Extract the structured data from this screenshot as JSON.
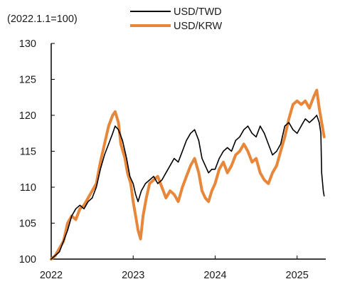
{
  "chart_data": {
    "type": "line",
    "unit_note": "(2022.1.1=100)",
    "xlabel": "",
    "ylabel": "",
    "x_ticks": [
      "2022",
      "2023",
      "2024",
      "2025"
    ],
    "y_ticks": [
      100,
      105,
      110,
      115,
      120,
      125,
      130
    ],
    "ylim": [
      100,
      130
    ],
    "xlim": [
      2022.0,
      2025.35
    ],
    "grid": false,
    "legend_position": "top-center",
    "series": [
      {
        "name": "USD/TWD",
        "color": "#000000",
        "points": [
          [
            2022.0,
            100.0
          ],
          [
            2022.05,
            100.5
          ],
          [
            2022.1,
            101.0
          ],
          [
            2022.15,
            102.5
          ],
          [
            2022.2,
            104.0
          ],
          [
            2022.25,
            106.0
          ],
          [
            2022.3,
            107.0
          ],
          [
            2022.35,
            107.5
          ],
          [
            2022.4,
            107.0
          ],
          [
            2022.45,
            108.0
          ],
          [
            2022.5,
            108.5
          ],
          [
            2022.55,
            110.0
          ],
          [
            2022.6,
            112.5
          ],
          [
            2022.65,
            114.5
          ],
          [
            2022.7,
            116.0
          ],
          [
            2022.75,
            117.5
          ],
          [
            2022.78,
            118.5
          ],
          [
            2022.82,
            118.0
          ],
          [
            2022.87,
            116.5
          ],
          [
            2022.92,
            114.0
          ],
          [
            2022.96,
            111.5
          ],
          [
            2023.0,
            110.5
          ],
          [
            2023.03,
            109.0
          ],
          [
            2023.06,
            108.0
          ],
          [
            2023.1,
            109.5
          ],
          [
            2023.15,
            110.5
          ],
          [
            2023.2,
            111.0
          ],
          [
            2023.25,
            111.5
          ],
          [
            2023.3,
            110.5
          ],
          [
            2023.35,
            111.0
          ],
          [
            2023.4,
            112.0
          ],
          [
            2023.45,
            113.0
          ],
          [
            2023.5,
            114.0
          ],
          [
            2023.55,
            113.5
          ],
          [
            2023.6,
            115.0
          ],
          [
            2023.65,
            116.5
          ],
          [
            2023.7,
            117.5
          ],
          [
            2023.75,
            118.0
          ],
          [
            2023.8,
            116.5
          ],
          [
            2023.84,
            114.0
          ],
          [
            2023.88,
            113.0
          ],
          [
            2023.92,
            112.0
          ],
          [
            2023.96,
            112.5
          ],
          [
            2024.0,
            112.5
          ],
          [
            2024.05,
            114.0
          ],
          [
            2024.1,
            115.0
          ],
          [
            2024.15,
            115.5
          ],
          [
            2024.2,
            115.0
          ],
          [
            2024.25,
            116.5
          ],
          [
            2024.3,
            117.0
          ],
          [
            2024.35,
            118.0
          ],
          [
            2024.4,
            118.5
          ],
          [
            2024.45,
            117.5
          ],
          [
            2024.5,
            117.0
          ],
          [
            2024.55,
            118.5
          ],
          [
            2024.6,
            117.5
          ],
          [
            2024.65,
            116.0
          ],
          [
            2024.7,
            114.5
          ],
          [
            2024.75,
            115.0
          ],
          [
            2024.8,
            116.0
          ],
          [
            2024.85,
            118.5
          ],
          [
            2024.9,
            119.0
          ],
          [
            2024.95,
            118.0
          ],
          [
            2025.0,
            117.5
          ],
          [
            2025.05,
            118.5
          ],
          [
            2025.1,
            119.5
          ],
          [
            2025.15,
            119.0
          ],
          [
            2025.2,
            119.5
          ],
          [
            2025.24,
            120.0
          ],
          [
            2025.27,
            119.0
          ],
          [
            2025.29,
            117.5
          ],
          [
            2025.3,
            112.0
          ],
          [
            2025.32,
            109.5
          ],
          [
            2025.33,
            108.8
          ]
        ]
      },
      {
        "name": "USD/KRW",
        "color": "#E8873A",
        "points": [
          [
            2022.0,
            100.0
          ],
          [
            2022.05,
            100.5
          ],
          [
            2022.1,
            101.5
          ],
          [
            2022.15,
            102.5
          ],
          [
            2022.2,
            105.0
          ],
          [
            2022.25,
            106.0
          ],
          [
            2022.3,
            105.5
          ],
          [
            2022.35,
            107.0
          ],
          [
            2022.4,
            107.5
          ],
          [
            2022.45,
            108.5
          ],
          [
            2022.5,
            109.5
          ],
          [
            2022.55,
            110.5
          ],
          [
            2022.6,
            113.5
          ],
          [
            2022.65,
            116.0
          ],
          [
            2022.7,
            118.5
          ],
          [
            2022.75,
            120.0
          ],
          [
            2022.78,
            120.5
          ],
          [
            2022.82,
            119.0
          ],
          [
            2022.85,
            116.0
          ],
          [
            2022.9,
            114.0
          ],
          [
            2022.93,
            112.0
          ],
          [
            2022.97,
            110.5
          ],
          [
            2023.0,
            108.0
          ],
          [
            2023.03,
            106.0
          ],
          [
            2023.06,
            104.0
          ],
          [
            2023.09,
            102.8
          ],
          [
            2023.12,
            106.0
          ],
          [
            2023.16,
            108.5
          ],
          [
            2023.2,
            110.5
          ],
          [
            2023.25,
            111.0
          ],
          [
            2023.3,
            111.5
          ],
          [
            2023.35,
            110.0
          ],
          [
            2023.4,
            108.5
          ],
          [
            2023.45,
            109.5
          ],
          [
            2023.5,
            109.0
          ],
          [
            2023.55,
            108.0
          ],
          [
            2023.6,
            110.0
          ],
          [
            2023.65,
            111.5
          ],
          [
            2023.7,
            113.0
          ],
          [
            2023.75,
            114.0
          ],
          [
            2023.8,
            112.0
          ],
          [
            2023.84,
            109.5
          ],
          [
            2023.88,
            108.5
          ],
          [
            2023.92,
            108.0
          ],
          [
            2023.96,
            109.5
          ],
          [
            2024.0,
            110.5
          ],
          [
            2024.05,
            112.5
          ],
          [
            2024.1,
            113.5
          ],
          [
            2024.15,
            112.0
          ],
          [
            2024.2,
            113.0
          ],
          [
            2024.25,
            114.5
          ],
          [
            2024.3,
            115.0
          ],
          [
            2024.35,
            116.0
          ],
          [
            2024.4,
            115.0
          ],
          [
            2024.45,
            113.5
          ],
          [
            2024.5,
            114.0
          ],
          [
            2024.55,
            112.0
          ],
          [
            2024.6,
            111.0
          ],
          [
            2024.65,
            110.5
          ],
          [
            2024.7,
            112.0
          ],
          [
            2024.75,
            113.0
          ],
          [
            2024.8,
            115.0
          ],
          [
            2024.85,
            117.0
          ],
          [
            2024.9,
            119.5
          ],
          [
            2024.95,
            121.5
          ],
          [
            2025.0,
            122.0
          ],
          [
            2025.05,
            121.5
          ],
          [
            2025.1,
            122.0
          ],
          [
            2025.15,
            121.0
          ],
          [
            2025.2,
            122.5
          ],
          [
            2025.24,
            123.5
          ],
          [
            2025.27,
            121.0
          ],
          [
            2025.3,
            119.0
          ],
          [
            2025.33,
            117.0
          ]
        ]
      }
    ]
  }
}
